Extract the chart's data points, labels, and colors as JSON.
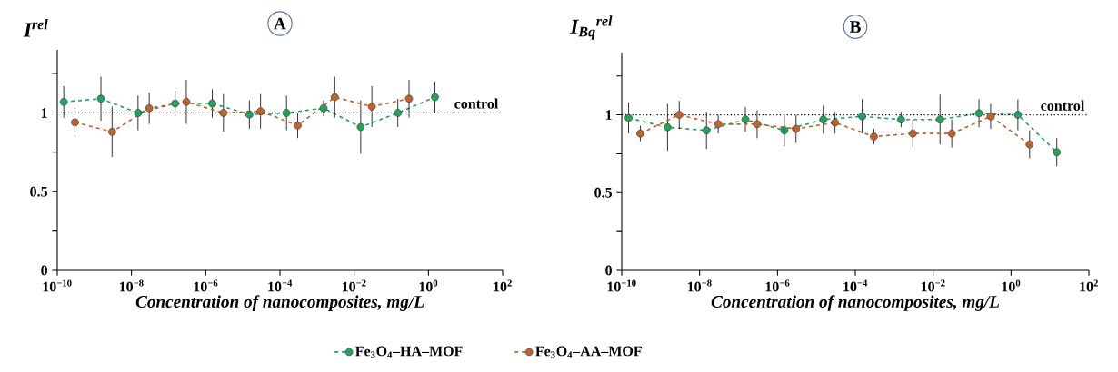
{
  "chart_data": [
    {
      "type": "line",
      "title": "A",
      "ylabel": "I$^{rel}$",
      "xlabel": "Concentration of nanocomposites, mg/L",
      "log": "x",
      "marker": "circle",
      "line_style": "dashed",
      "legend": "bottom",
      "xlim": [
        1e-10,
        100
      ],
      "xticks": [
        {
          "value": 1e-10,
          "label": "10$^{−10}$"
        },
        {
          "value": 1e-08,
          "label": "10$^{−8}$"
        },
        {
          "value": 1e-06,
          "label": "10$^{−6}$"
        },
        {
          "value": 0.0001,
          "label": "10$^{−4}$"
        },
        {
          "value": 0.01,
          "label": "10$^{−2}$"
        },
        {
          "value": 1,
          "label": "10$^{0}$"
        },
        {
          "value": 100,
          "label": "10$^{2}$"
        }
      ],
      "ylim": [
        0,
        1.4
      ],
      "yticks": [
        0,
        {
          "value": 0.25,
          "label": null
        },
        0.5,
        {
          "value": 0.75,
          "label": null
        },
        1,
        {
          "value": 1.25,
          "label": null
        }
      ],
      "ref_lines": [
        {
          "axis": "y",
          "value": 1,
          "label": "control",
          "color": "#000000",
          "line_style": "dotted"
        }
      ],
      "series": [
        {
          "name": "Fe$_{3}$O$_{4}$–HA–MOF",
          "color": "#21a35c",
          "x": [
            1.5e-10,
            1.5e-09,
            1.5e-08,
            1.5e-07,
            1.5e-06,
            1.5e-05,
            0.00015,
            0.0015,
            0.015,
            0.15,
            1.5
          ],
          "values": [
            1.07,
            1.09,
            1.0,
            1.06,
            1.06,
            0.99,
            1.0,
            1.03,
            0.91,
            1.0,
            1.1
          ],
          "errors": [
            0.1,
            0.14,
            0.11,
            0.08,
            0.09,
            0.09,
            0.11,
            0.05,
            0.17,
            0.09,
            0.1
          ]
        },
        {
          "name": "Fe$_{3}$O$_{4}$–AA–MOF",
          "color": "#c0622a",
          "x": [
            3e-10,
            3e-09,
            3e-08,
            3e-07,
            3e-06,
            3e-05,
            0.0003,
            0.003,
            0.03,
            0.3
          ],
          "values": [
            0.94,
            0.88,
            1.03,
            1.07,
            1.0,
            1.01,
            0.92,
            1.1,
            1.04,
            1.09
          ],
          "errors": [
            0.09,
            0.16,
            0.1,
            0.14,
            0.12,
            0.11,
            0.08,
            0.13,
            0.13,
            0.12
          ]
        }
      ]
    },
    {
      "type": "line",
      "title": "B",
      "ylabel": "I$_{Bq}$$^{rel}$",
      "xlabel": "Concentration of nanocomposites, mg/L",
      "log": "x",
      "marker": "circle",
      "line_style": "dashed",
      "xlim": [
        1e-10,
        100
      ],
      "xticks": [
        {
          "value": 1e-10,
          "label": "10$^{−10}$"
        },
        {
          "value": 1e-08,
          "label": "10$^{−8}$"
        },
        {
          "value": 1e-06,
          "label": "10$^{−6}$"
        },
        {
          "value": 0.0001,
          "label": "10$^{−4}$"
        },
        {
          "value": 0.01,
          "label": "10$^{−2}$"
        },
        {
          "value": 1,
          "label": "10$^{0}$"
        },
        {
          "value": 100,
          "label": "10$^{2}$"
        }
      ],
      "ylim": [
        0,
        1.4
      ],
      "yticks": [
        0,
        {
          "value": 0.25,
          "label": null
        },
        0.5,
        {
          "value": 0.75,
          "label": null
        },
        1,
        {
          "value": 1.25,
          "label": null
        }
      ],
      "ref_lines": [
        {
          "axis": "y",
          "value": 1,
          "label": "control",
          "color": "#000000",
          "line_style": "dotted"
        }
      ],
      "series": [
        {
          "color": "#21a35c",
          "x": [
            1.5e-10,
            1.5e-09,
            1.5e-08,
            1.5e-07,
            1.5e-06,
            1.5e-05,
            0.00015,
            0.0015,
            0.015,
            0.15,
            1.5,
            15
          ],
          "values": [
            0.98,
            0.92,
            0.9,
            0.97,
            0.9,
            0.97,
            0.99,
            0.97,
            0.97,
            1.01,
            1.0,
            0.76
          ],
          "errors": [
            0.1,
            0.15,
            0.12,
            0.08,
            0.1,
            0.09,
            0.11,
            0.05,
            0.16,
            0.09,
            0.1,
            0.09
          ]
        },
        {
          "color": "#c0622a",
          "x": [
            3e-10,
            3e-09,
            3e-08,
            3e-07,
            3e-06,
            3e-05,
            0.0003,
            0.003,
            0.03,
            0.3,
            3
          ],
          "values": [
            0.88,
            1.0,
            0.94,
            0.94,
            0.91,
            0.95,
            0.86,
            0.88,
            0.88,
            0.99,
            0.81
          ],
          "errors": [
            0.05,
            0.09,
            0.06,
            0.09,
            0.09,
            0.07,
            0.05,
            0.09,
            0.09,
            0.08,
            0.09
          ]
        }
      ]
    }
  ]
}
